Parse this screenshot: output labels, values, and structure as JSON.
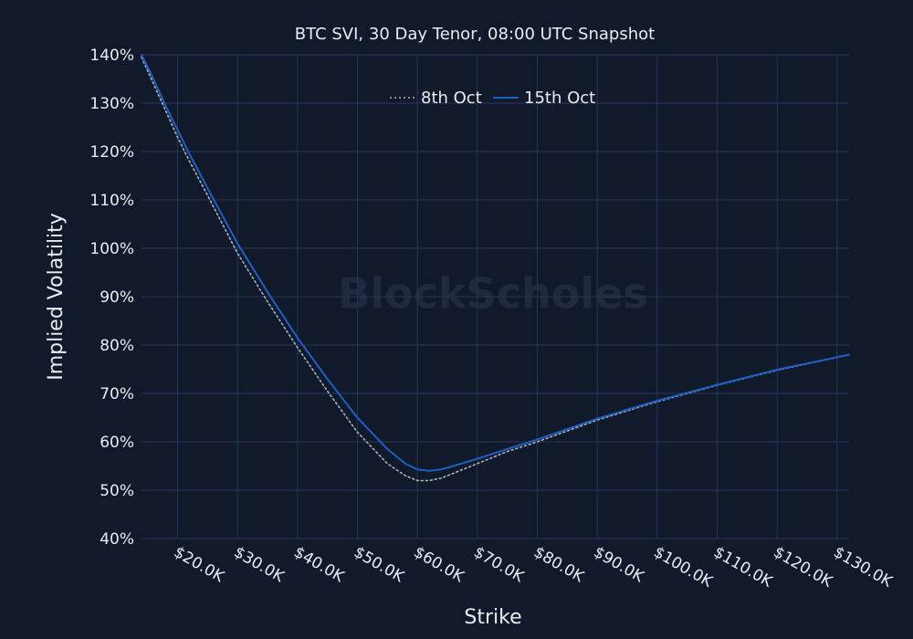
{
  "chart_data": {
    "type": "line",
    "title": "BTC SVI, 30 Day Tenor, 08:00 UTC Snapshot",
    "xlabel": "Strike",
    "ylabel": "Implied Volatility",
    "xlim": [
      14000,
      132000
    ],
    "ylim": [
      40,
      140
    ],
    "x_tick_values": [
      20000,
      30000,
      40000,
      50000,
      60000,
      70000,
      80000,
      90000,
      100000,
      110000,
      120000,
      130000
    ],
    "x_tick_labels": [
      "$20.0K",
      "$30.0K",
      "$40.0K",
      "$50.0K",
      "$60.0K",
      "$70.0K",
      "$80.0K",
      "$90.0K",
      "$100.0K",
      "$110.0K",
      "$120.0K",
      "$130.0K"
    ],
    "y_tick_values": [
      40,
      50,
      60,
      70,
      80,
      90,
      100,
      110,
      120,
      130,
      140
    ],
    "y_tick_labels": [
      "40%",
      "50%",
      "60%",
      "70%",
      "80%",
      "90%",
      "100%",
      "110%",
      "120%",
      "130%",
      "140%"
    ],
    "grid": true,
    "legend_position": "top-center",
    "watermark": "BlockScholes",
    "series": [
      {
        "name": "8th Oct",
        "style": "dotted",
        "color": "#a9b1bd",
        "x": [
          14000,
          16000,
          18000,
          20000,
          22000,
          25000,
          30000,
          35000,
          40000,
          45000,
          50000,
          55000,
          58000,
          60000,
          62000,
          64000,
          66000,
          70000,
          75000,
          80000,
          90000,
          100000,
          110000,
          120000,
          132000
        ],
        "y": [
          139.5,
          134,
          128.5,
          123,
          118,
          111,
          99,
          89,
          79.5,
          70.5,
          62,
          55.5,
          53,
          52,
          52,
          52.5,
          53.5,
          55.5,
          58,
          60,
          64.5,
          68.3,
          71.7,
          74.8,
          78
        ]
      },
      {
        "name": "15th Oct",
        "style": "solid",
        "color": "#1e5fc4",
        "x": [
          14000,
          16000,
          18000,
          20000,
          22000,
          25000,
          30000,
          35000,
          40000,
          45000,
          50000,
          55000,
          58000,
          60000,
          62000,
          64000,
          66000,
          70000,
          75000,
          80000,
          90000,
          100000,
          110000,
          120000,
          132000
        ],
        "y": [
          140,
          135,
          129.5,
          124.5,
          119.5,
          112.5,
          101,
          91,
          81.5,
          73,
          65,
          58.5,
          55.5,
          54.3,
          54,
          54.3,
          55,
          56.5,
          58.5,
          60.5,
          64.8,
          68.5,
          71.8,
          74.9,
          78
        ]
      }
    ]
  }
}
